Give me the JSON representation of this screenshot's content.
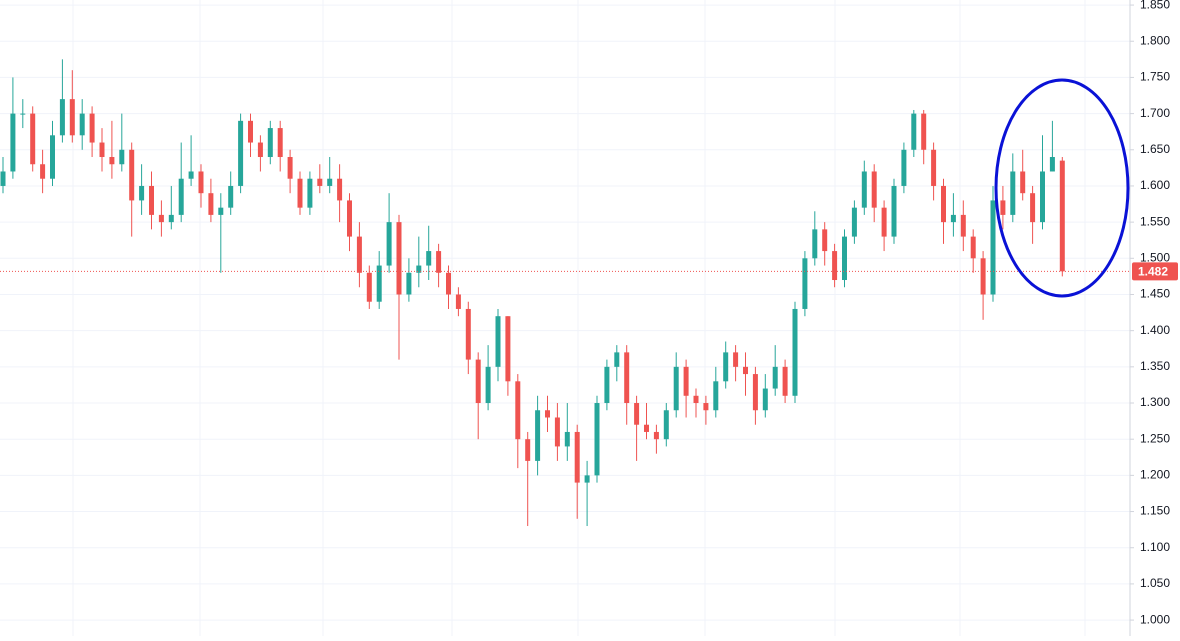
{
  "chart_data": {
    "type": "candlestick",
    "up_color": "#26a69a",
    "down_color": "#ef5350",
    "grid": true,
    "ylim": [
      0.978,
      1.857
    ],
    "yticks": [
      {
        "value": 1.0,
        "label": "1.000"
      },
      {
        "value": 1.05,
        "label": "1.050"
      },
      {
        "value": 1.1,
        "label": "1.100"
      },
      {
        "value": 1.15,
        "label": "1.150"
      },
      {
        "value": 1.2,
        "label": "1.200"
      },
      {
        "value": 1.25,
        "label": "1.250"
      },
      {
        "value": 1.3,
        "label": "1.300"
      },
      {
        "value": 1.35,
        "label": "1.350"
      },
      {
        "value": 1.4,
        "label": "1.400"
      },
      {
        "value": 1.45,
        "label": "1.450"
      },
      {
        "value": 1.5,
        "label": "1.500"
      },
      {
        "value": 1.55,
        "label": "1.550"
      },
      {
        "value": 1.6,
        "label": "1.600"
      },
      {
        "value": 1.65,
        "label": "1.650"
      },
      {
        "value": 1.7,
        "label": "1.700"
      },
      {
        "value": 1.75,
        "label": "1.750"
      },
      {
        "value": 1.8,
        "label": "1.800"
      },
      {
        "value": 1.85,
        "label": "1.850"
      }
    ],
    "open": [
      1.6,
      1.62,
      1.7,
      1.7,
      1.63,
      1.61,
      1.67,
      1.72,
      1.67,
      1.7,
      1.66,
      1.64,
      1.63,
      1.65,
      1.58,
      1.6,
      1.56,
      1.55,
      1.56,
      1.61,
      1.62,
      1.59,
      1.56,
      1.57,
      1.6,
      1.69,
      1.66,
      1.64,
      1.68,
      1.64,
      1.61,
      1.57,
      1.61,
      1.6,
      1.61,
      1.58,
      1.53,
      1.48,
      1.44,
      1.49,
      1.55,
      1.45,
      1.48,
      1.49,
      1.51,
      1.48,
      1.45,
      1.43,
      1.36,
      1.3,
      1.35,
      1.42,
      1.33,
      1.25,
      1.22,
      1.29,
      1.28,
      1.24,
      1.26,
      1.19,
      1.2,
      1.3,
      1.35,
      1.37,
      1.3,
      1.27,
      1.26,
      1.25,
      1.29,
      1.35,
      1.31,
      1.3,
      1.29,
      1.33,
      1.37,
      1.35,
      1.34,
      1.29,
      1.32,
      1.35,
      1.31,
      1.43,
      1.5,
      1.54,
      1.51,
      1.47,
      1.53,
      1.57,
      1.62,
      1.57,
      1.53,
      1.6,
      1.65,
      1.7,
      1.65,
      1.6,
      1.55,
      1.56,
      1.53,
      1.5,
      1.45,
      1.58,
      1.56,
      1.62,
      1.59,
      1.55,
      1.62,
      1.635
    ],
    "high": [
      1.64,
      1.75,
      1.72,
      1.71,
      1.65,
      1.69,
      1.775,
      1.76,
      1.72,
      1.71,
      1.68,
      1.69,
      1.7,
      1.66,
      1.63,
      1.62,
      1.58,
      1.6,
      1.66,
      1.67,
      1.63,
      1.61,
      1.59,
      1.62,
      1.7,
      1.7,
      1.67,
      1.69,
      1.69,
      1.65,
      1.62,
      1.62,
      1.63,
      1.64,
      1.63,
      1.59,
      1.55,
      1.49,
      1.51,
      1.59,
      1.56,
      1.5,
      1.53,
      1.545,
      1.52,
      1.49,
      1.46,
      1.44,
      1.37,
      1.38,
      1.43,
      1.42,
      1.34,
      1.26,
      1.31,
      1.31,
      1.3,
      1.3,
      1.27,
      1.22,
      1.31,
      1.36,
      1.38,
      1.38,
      1.31,
      1.3,
      1.27,
      1.3,
      1.37,
      1.36,
      1.32,
      1.31,
      1.35,
      1.385,
      1.38,
      1.37,
      1.35,
      1.34,
      1.38,
      1.36,
      1.44,
      1.51,
      1.565,
      1.55,
      1.52,
      1.54,
      1.58,
      1.635,
      1.63,
      1.58,
      1.61,
      1.66,
      1.705,
      1.705,
      1.66,
      1.61,
      1.59,
      1.58,
      1.54,
      1.51,
      1.6,
      1.6,
      1.645,
      1.65,
      1.6,
      1.67,
      1.69,
      1.64
    ],
    "low": [
      1.59,
      1.61,
      1.68,
      1.62,
      1.59,
      1.6,
      1.66,
      1.66,
      1.65,
      1.64,
      1.62,
      1.61,
      1.62,
      1.53,
      1.56,
      1.54,
      1.53,
      1.54,
      1.55,
      1.6,
      1.57,
      1.55,
      1.48,
      1.56,
      1.59,
      1.64,
      1.62,
      1.63,
      1.62,
      1.59,
      1.56,
      1.56,
      1.59,
      1.59,
      1.55,
      1.51,
      1.46,
      1.43,
      1.43,
      1.48,
      1.36,
      1.44,
      1.46,
      1.47,
      1.46,
      1.43,
      1.42,
      1.34,
      1.25,
      1.29,
      1.33,
      1.31,
      1.21,
      1.13,
      1.2,
      1.26,
      1.22,
      1.22,
      1.14,
      1.13,
      1.19,
      1.29,
      1.33,
      1.27,
      1.22,
      1.25,
      1.23,
      1.24,
      1.28,
      1.28,
      1.28,
      1.27,
      1.28,
      1.32,
      1.33,
      1.31,
      1.27,
      1.28,
      1.31,
      1.3,
      1.3,
      1.42,
      1.49,
      1.49,
      1.46,
      1.46,
      1.52,
      1.56,
      1.55,
      1.51,
      1.52,
      1.59,
      1.64,
      1.63,
      1.58,
      1.52,
      1.53,
      1.51,
      1.48,
      1.415,
      1.44,
      1.54,
      1.55,
      1.58,
      1.52,
      1.54,
      1.62,
      1.475
    ],
    "close": [
      1.62,
      1.7,
      1.7,
      1.63,
      1.61,
      1.67,
      1.72,
      1.67,
      1.7,
      1.66,
      1.64,
      1.63,
      1.65,
      1.58,
      1.6,
      1.56,
      1.55,
      1.56,
      1.61,
      1.62,
      1.59,
      1.56,
      1.57,
      1.6,
      1.69,
      1.66,
      1.64,
      1.68,
      1.64,
      1.61,
      1.57,
      1.61,
      1.6,
      1.61,
      1.58,
      1.53,
      1.48,
      1.44,
      1.49,
      1.55,
      1.45,
      1.48,
      1.49,
      1.51,
      1.48,
      1.45,
      1.43,
      1.36,
      1.3,
      1.35,
      1.42,
      1.33,
      1.25,
      1.22,
      1.29,
      1.28,
      1.24,
      1.26,
      1.19,
      1.2,
      1.3,
      1.35,
      1.37,
      1.3,
      1.27,
      1.26,
      1.25,
      1.29,
      1.35,
      1.31,
      1.3,
      1.29,
      1.33,
      1.37,
      1.35,
      1.34,
      1.29,
      1.32,
      1.35,
      1.31,
      1.43,
      1.5,
      1.54,
      1.51,
      1.47,
      1.53,
      1.57,
      1.62,
      1.57,
      1.53,
      1.6,
      1.65,
      1.7,
      1.65,
      1.6,
      1.55,
      1.56,
      1.53,
      1.5,
      1.45,
      1.58,
      1.56,
      1.62,
      1.59,
      1.55,
      1.62,
      1.64,
      1.482
    ]
  }
}
